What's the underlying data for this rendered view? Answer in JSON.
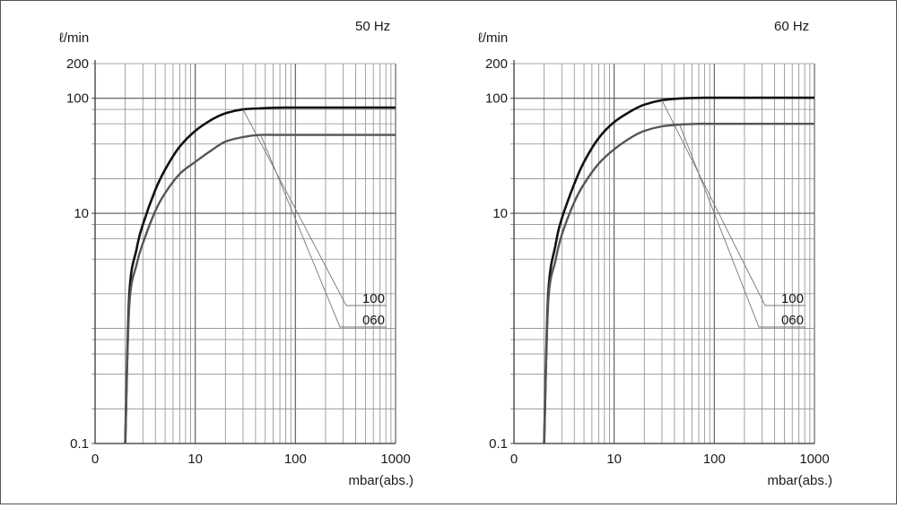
{
  "chart_data": [
    {
      "type": "line",
      "title": "50 Hz",
      "ylabel": "ℓ/min",
      "xlabel": "mbar(abs.)",
      "xscale": "log",
      "yscale": "log",
      "xlim": [
        1,
        1000
      ],
      "ylim": [
        0.1,
        200
      ],
      "x_tick_labels": [
        "0",
        "10",
        "100",
        "1000"
      ],
      "y_tick_labels": [
        "0.1",
        "10",
        "100",
        "200"
      ],
      "grid": true,
      "series": [
        {
          "name": "100",
          "color": "#111111",
          "points": [
            [
              2.0,
              0.1
            ],
            [
              2.2,
              2.0
            ],
            [
              2.6,
              4.9
            ],
            [
              3,
              8
            ],
            [
              4,
              16
            ],
            [
              5,
              24
            ],
            [
              7,
              38
            ],
            [
              10,
              52
            ],
            [
              15,
              66
            ],
            [
              20,
              74
            ],
            [
              30,
              80
            ],
            [
              50,
              82
            ],
            [
              80,
              83
            ],
            [
              100,
              83
            ],
            [
              200,
              83
            ],
            [
              500,
              83
            ],
            [
              1000,
              83
            ]
          ]
        },
        {
          "name": "060",
          "color": "#555555",
          "points": [
            [
              2.0,
              0.1
            ],
            [
              2.2,
              1.6
            ],
            [
              2.6,
              3.6
            ],
            [
              3,
              5.5
            ],
            [
              4,
              10.5
            ],
            [
              5,
              15
            ],
            [
              7,
              22
            ],
            [
              10,
              28
            ],
            [
              15,
              36
            ],
            [
              20,
              42
            ],
            [
              30,
              46
            ],
            [
              45,
              48
            ],
            [
              70,
              48
            ],
            [
              100,
              48
            ],
            [
              200,
              48
            ],
            [
              500,
              48
            ],
            [
              1000,
              48
            ]
          ]
        }
      ]
    },
    {
      "type": "line",
      "title": "60 Hz",
      "ylabel": "ℓ/min",
      "xlabel": "mbar(abs.)",
      "xscale": "log",
      "yscale": "log",
      "xlim": [
        1,
        1000
      ],
      "ylim": [
        0.1,
        200
      ],
      "x_tick_labels": [
        "0",
        "10",
        "100",
        "1000"
      ],
      "y_tick_labels": [
        "0.1",
        "10",
        "100",
        "200"
      ],
      "grid": true,
      "series": [
        {
          "name": "100",
          "color": "#111111",
          "points": [
            [
              2.0,
              0.1
            ],
            [
              2.2,
              2.0
            ],
            [
              2.6,
              5.3
            ],
            [
              3,
              9
            ],
            [
              4,
              18
            ],
            [
              5,
              28
            ],
            [
              7,
              45
            ],
            [
              10,
              62
            ],
            [
              15,
              78
            ],
            [
              20,
              88
            ],
            [
              30,
              96
            ],
            [
              50,
              100
            ],
            [
              80,
              101
            ],
            [
              100,
              101
            ],
            [
              200,
              101
            ],
            [
              500,
              101
            ],
            [
              1000,
              101
            ]
          ]
        },
        {
          "name": "060",
          "color": "#555555",
          "points": [
            [
              2.0,
              0.1
            ],
            [
              2.2,
              1.7
            ],
            [
              2.6,
              3.9
            ],
            [
              3,
              6.5
            ],
            [
              4,
              12.5
            ],
            [
              5,
              18
            ],
            [
              7,
              27
            ],
            [
              10,
              36
            ],
            [
              15,
              46
            ],
            [
              20,
              52
            ],
            [
              30,
              57
            ],
            [
              45,
              59
            ],
            [
              70,
              60
            ],
            [
              100,
              60
            ],
            [
              200,
              60
            ],
            [
              500,
              60
            ],
            [
              1000,
              60
            ]
          ]
        }
      ]
    }
  ]
}
